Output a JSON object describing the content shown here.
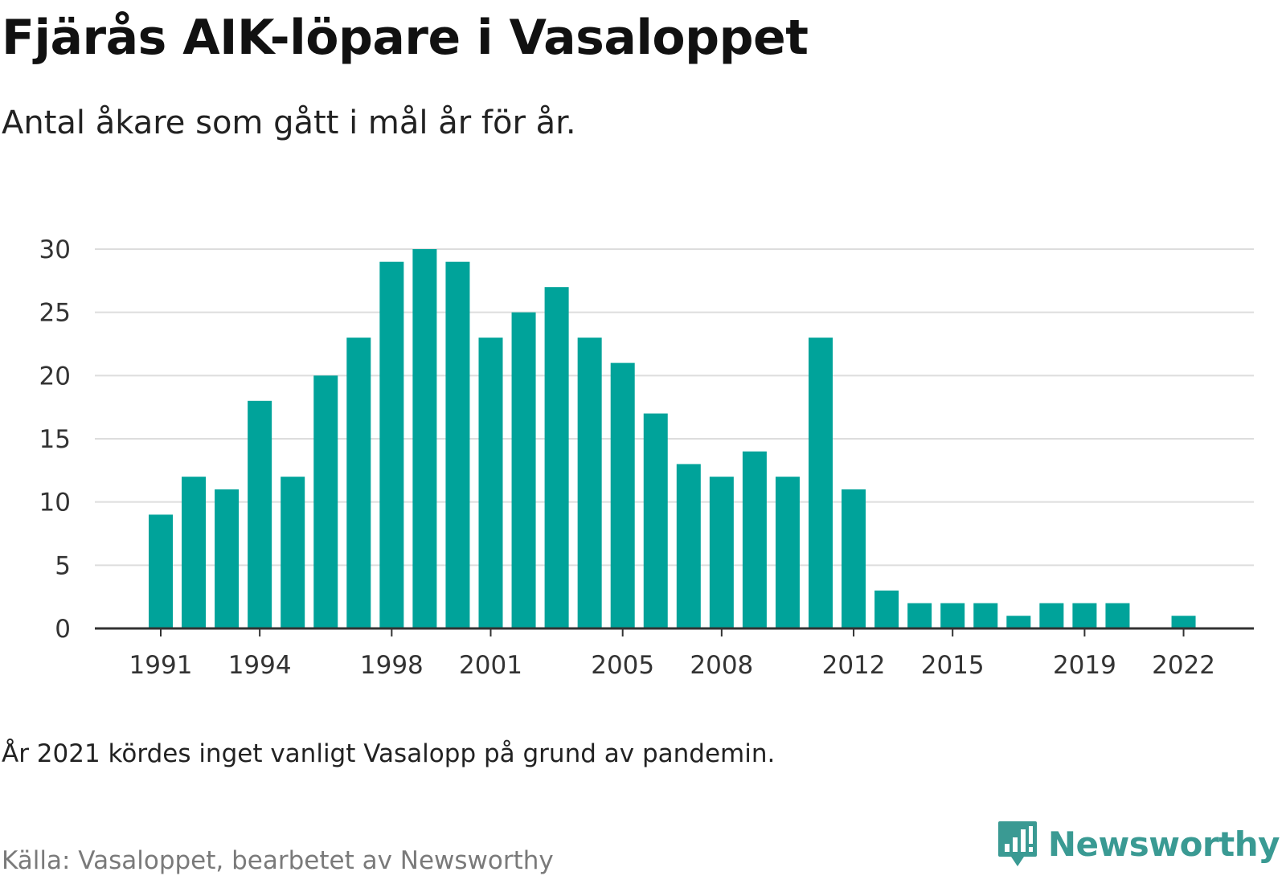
{
  "title": "Fjärås AIK-löpare i Vasaloppet",
  "subtitle": "Antal åkare som gått i mål år för år.",
  "note": "År 2021 kördes inget vanligt Vasalopp på grund av pandemin.",
  "source": "Källa: Vasaloppet, bearbetet av Newsworthy",
  "brand": {
    "name": "Newsworthy",
    "icon": "newsworthy-logo-icon",
    "color": "#3a9a93"
  },
  "colors": {
    "bar": "#00a39a",
    "grid": "#dddddd",
    "axis": "#333333"
  },
  "chart_data": {
    "type": "bar",
    "title": "Fjärås AIK-löpare i Vasaloppet",
    "xlabel": "",
    "ylabel": "",
    "x": [
      1991,
      1992,
      1993,
      1994,
      1995,
      1996,
      1997,
      1998,
      1999,
      2000,
      2001,
      2002,
      2003,
      2004,
      2005,
      2006,
      2007,
      2008,
      2009,
      2010,
      2011,
      2012,
      2013,
      2014,
      2015,
      2016,
      2017,
      2018,
      2019,
      2020,
      2021,
      2022
    ],
    "values": [
      9,
      12,
      11,
      18,
      12,
      20,
      23,
      29,
      30,
      29,
      23,
      25,
      27,
      23,
      21,
      17,
      13,
      12,
      14,
      12,
      23,
      11,
      3,
      2,
      2,
      2,
      1,
      2,
      2,
      2,
      0,
      1
    ],
    "ylim": [
      0,
      30
    ],
    "yticks": [
      0,
      5,
      10,
      15,
      20,
      25,
      30
    ],
    "xticks": [
      "1991",
      "1994",
      "1998",
      "2001",
      "2005",
      "2008",
      "2012",
      "2015",
      "2019",
      "2022"
    ],
    "grid": true,
    "legend": "none"
  }
}
